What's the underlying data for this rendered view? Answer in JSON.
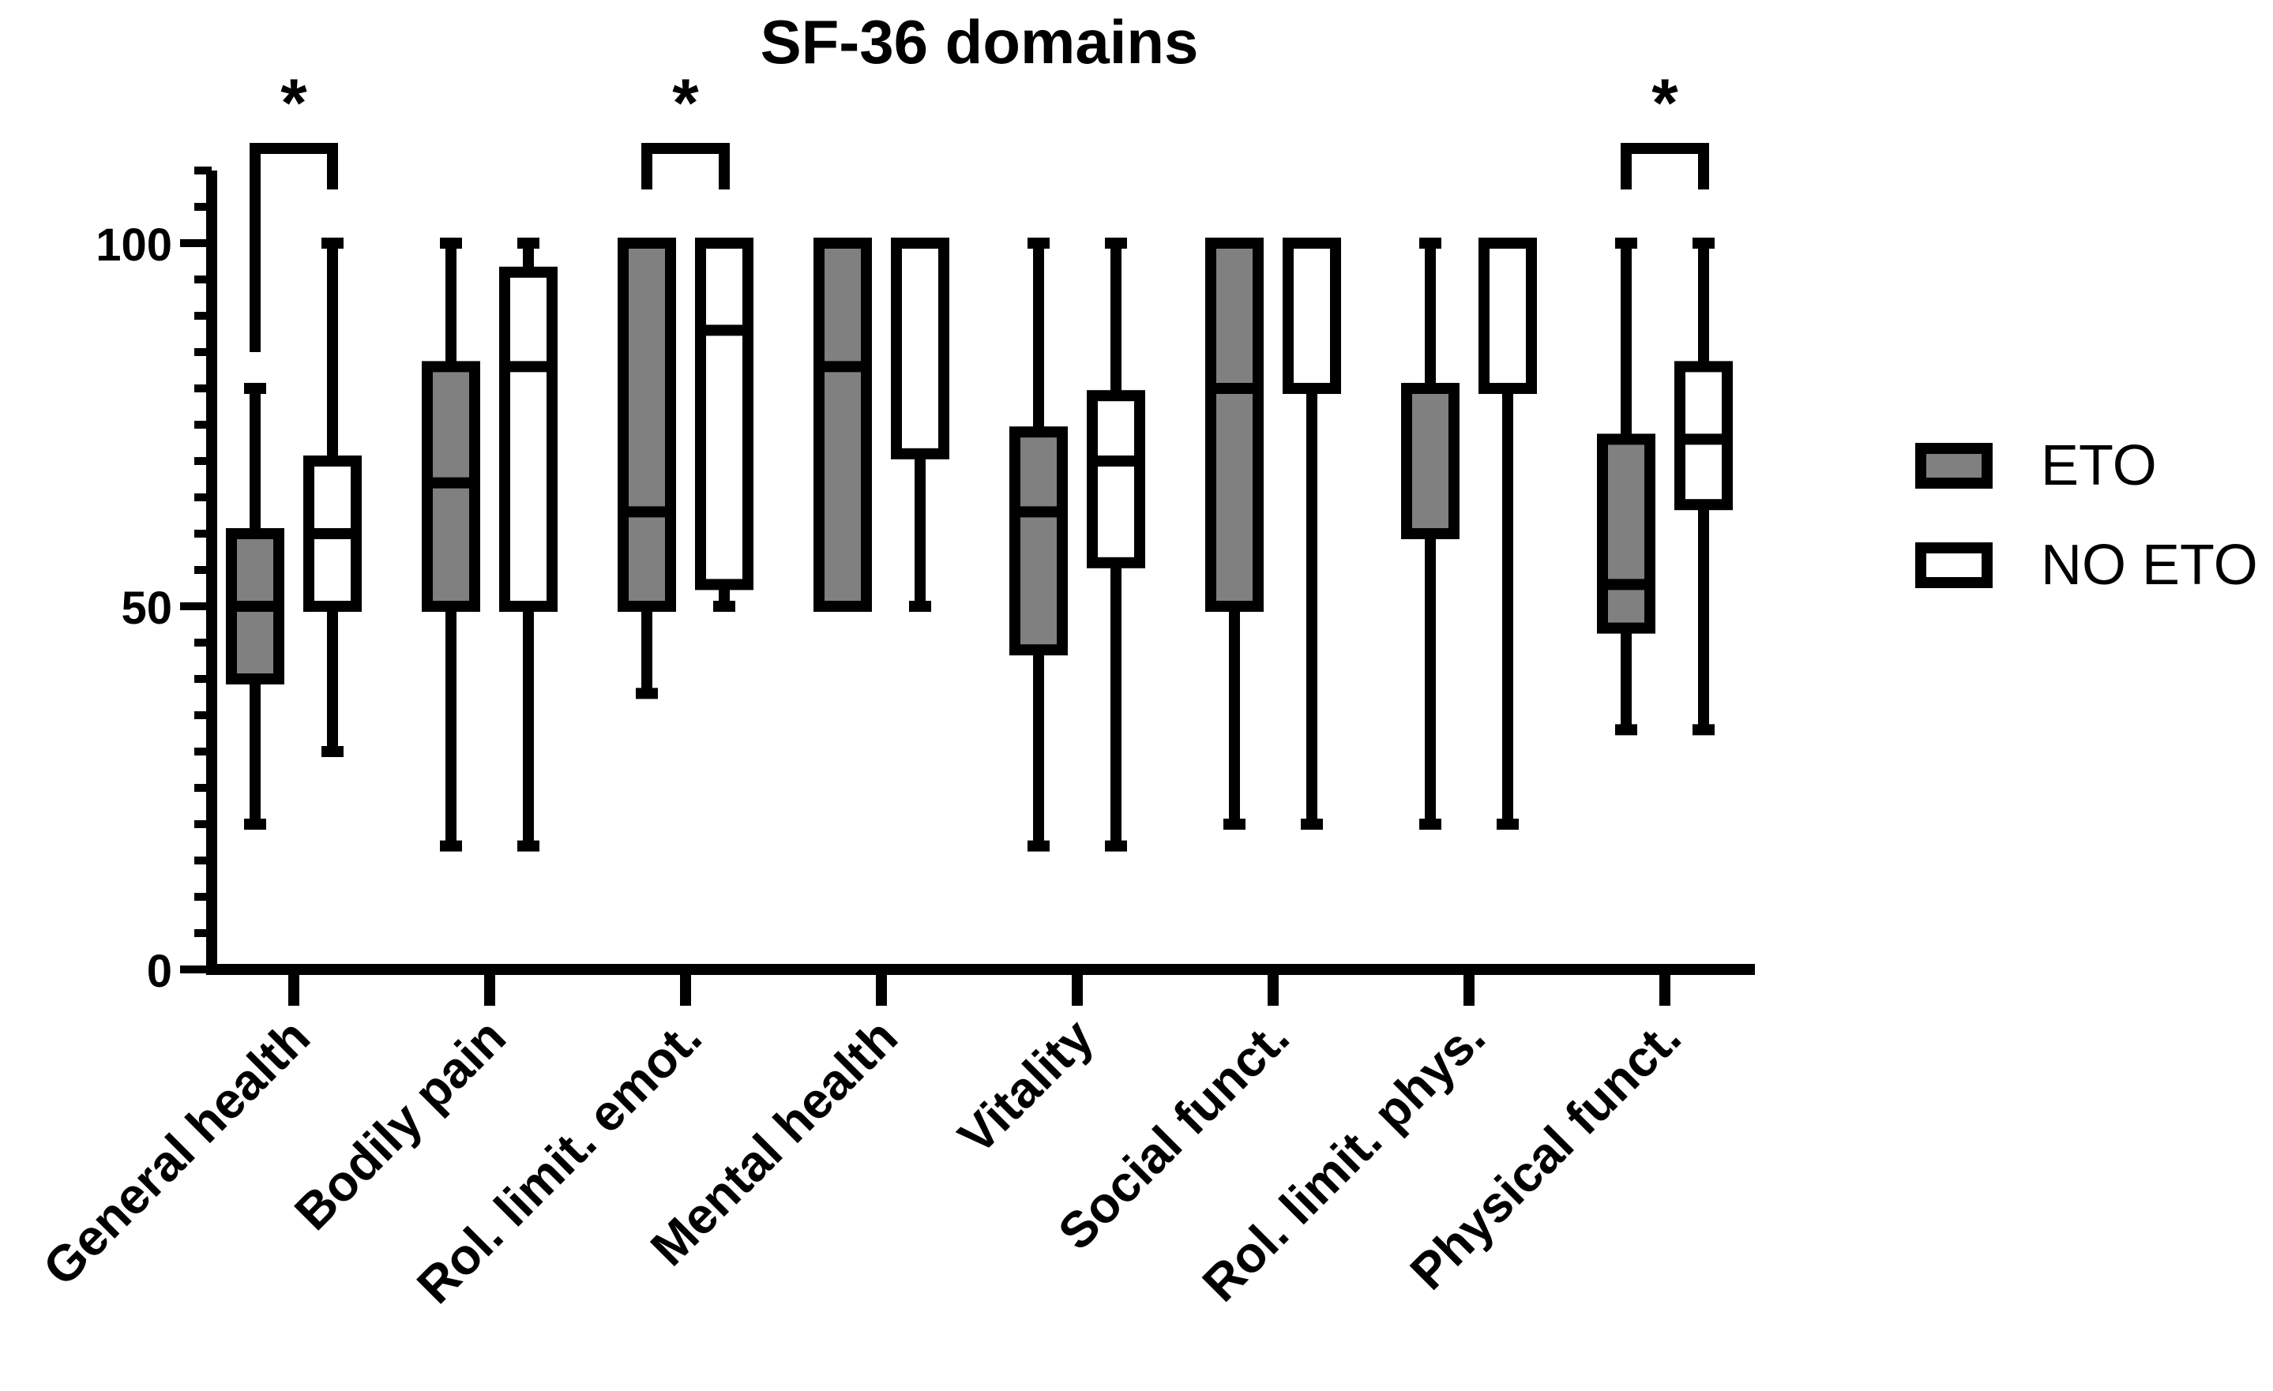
{
  "chart_data": {
    "type": "box",
    "title": "SF-36 domains",
    "xlabel": "",
    "ylabel": "",
    "ylim": [
      0,
      110
    ],
    "yticks": [
      0,
      50,
      100
    ],
    "y_minor_step": 5,
    "grid": false,
    "legend_position": "right",
    "categories": [
      "General health",
      "Bodily pain",
      "Rol. limit. emot.",
      "Mental health",
      "Vitality",
      "Social funct.",
      "Rol. limit. phys.",
      "Physical funct."
    ],
    "series": [
      {
        "name": "ETO",
        "color": "#808080",
        "boxes": [
          {
            "min": 20,
            "q1": 40,
            "median": 50,
            "q3": 60,
            "max": 80
          },
          {
            "min": 17,
            "q1": 50,
            "median": 67,
            "q3": 83,
            "max": 100
          },
          {
            "min": 38,
            "q1": 50,
            "median": 63,
            "q3": 100,
            "max": 100
          },
          {
            "min": 50,
            "q1": 50,
            "median": 83,
            "q3": 100,
            "max": 100
          },
          {
            "min": 17,
            "q1": 44,
            "median": 63,
            "q3": 74,
            "max": 100
          },
          {
            "min": 20,
            "q1": 50,
            "median": 80,
            "q3": 100,
            "max": 100
          },
          {
            "min": 20,
            "q1": 60,
            "median": 80,
            "q3": 80,
            "max": 100
          },
          {
            "min": 33,
            "q1": 47,
            "median": 53,
            "q3": 73,
            "max": 100
          }
        ]
      },
      {
        "name": "NO ETO",
        "color": "#ffffff",
        "boxes": [
          {
            "min": 30,
            "q1": 50,
            "median": 60,
            "q3": 70,
            "max": 100
          },
          {
            "min": 17,
            "q1": 50,
            "median": 83,
            "q3": 96,
            "max": 100
          },
          {
            "min": 50,
            "q1": 53,
            "median": 88,
            "q3": 100,
            "max": 100
          },
          {
            "min": 50,
            "q1": 71,
            "median": 100,
            "q3": 100,
            "max": 100
          },
          {
            "min": 17,
            "q1": 56,
            "median": 70,
            "q3": 79,
            "max": 100
          },
          {
            "min": 20,
            "q1": 80,
            "median": 100,
            "q3": 100,
            "max": 100
          },
          {
            "min": 20,
            "q1": 80,
            "median": 100,
            "q3": 100,
            "max": 100
          },
          {
            "min": 33,
            "q1": 64,
            "median": 73,
            "q3": 83,
            "max": 100
          }
        ]
      }
    ],
    "significance": [
      {
        "category_index": 0,
        "label": "*"
      },
      {
        "category_index": 2,
        "label": "*"
      },
      {
        "category_index": 7,
        "label": "*"
      }
    ]
  }
}
